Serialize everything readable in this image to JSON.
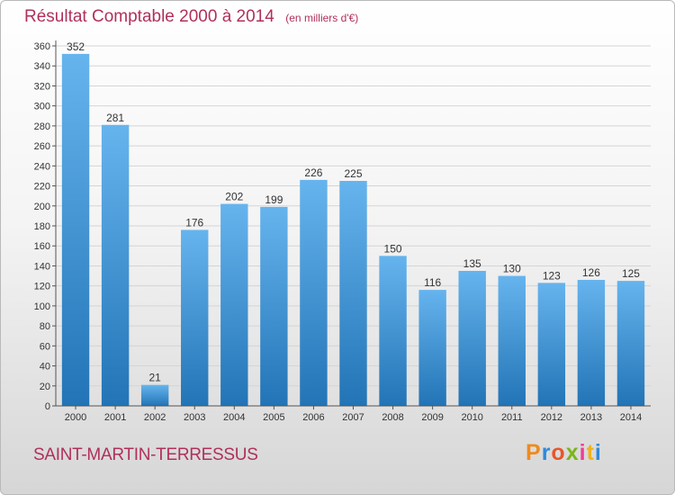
{
  "title": {
    "main": "Résultat Comptable 2000 à 2014",
    "unit": "(en milliers d'€)"
  },
  "town": "SAINT-MARTIN-TERRESSUS",
  "logo": {
    "text": "Proxiti",
    "colors": [
      "#f08a1c",
      "#2f8ad8",
      "#e8562a",
      "#7ab51d",
      "#ef3e96",
      "#f0b21c",
      "#2f8ad8"
    ]
  },
  "colors": {
    "bar_light": "#66b4ee",
    "bar_dark": "#2274b6",
    "grid": "#d5d5d5",
    "axis": "#555555",
    "label": "#333333",
    "accent": "#b0305a"
  },
  "chart_data": {
    "type": "bar",
    "title": "Résultat Comptable 2000 à 2014",
    "ylabel": "(en milliers d'€)",
    "categories": [
      "2000",
      "2001",
      "2002",
      "2003",
      "2004",
      "2005",
      "2006",
      "2007",
      "2008",
      "2009",
      "2010",
      "2011",
      "2012",
      "2013",
      "2014"
    ],
    "values": [
      352,
      281,
      21,
      176,
      202,
      199,
      226,
      225,
      150,
      116,
      135,
      130,
      123,
      126,
      125
    ],
    "ylim": [
      0,
      360
    ],
    "yticks": [
      0,
      20,
      40,
      60,
      80,
      100,
      120,
      140,
      160,
      180,
      200,
      220,
      240,
      260,
      280,
      300,
      320,
      340,
      360
    ],
    "grid": true,
    "data_labels": true
  }
}
